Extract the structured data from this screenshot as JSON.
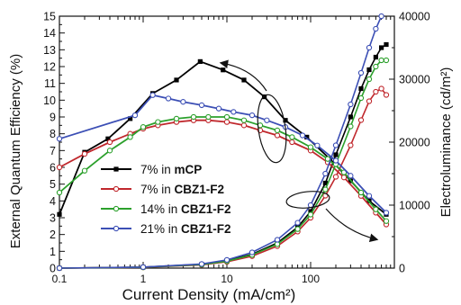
{
  "chart_data": {
    "type": "line",
    "xlabel": "Current Density (mA/cm²)",
    "ylabel_left": "External Quantum Efficiency (%)",
    "ylabel_right": "Electroluminance (cd/m²)",
    "x_scale": "log",
    "xlim": [
      0.1,
      1000
    ],
    "x_ticks": [
      0.1,
      1,
      10,
      100
    ],
    "x_tick_labels": [
      "0.1",
      "1",
      "10",
      "100"
    ],
    "ylim_left": [
      0,
      15
    ],
    "y_ticks_left": [
      0,
      1,
      2,
      3,
      4,
      5,
      6,
      7,
      8,
      9,
      10,
      11,
      12,
      13,
      14,
      15
    ],
    "ylim_right": [
      0,
      40000
    ],
    "y_ticks_right": [
      0,
      10000,
      20000,
      30000,
      40000
    ],
    "grid": false,
    "legend_position": "lower-left",
    "series": [
      {
        "name": "7% in mCP",
        "label_prefix": "7% in ",
        "label_bold": "mCP",
        "color": "#000000",
        "marker": "square-filled",
        "eqe": {
          "x": [
            0.1,
            0.2,
            0.38,
            0.7,
            1.3,
            2.5,
            4.8,
            9,
            16,
            28,
            50,
            90,
            170,
            300,
            500,
            800
          ],
          "y": [
            3.2,
            6.9,
            7.7,
            8.9,
            10.4,
            11.2,
            12.3,
            11.8,
            11.2,
            10.2,
            8.8,
            7.8,
            6.5,
            5.2,
            4.0,
            3.2
          ]
        },
        "luminance": {
          "x": [
            0.1,
            1,
            5,
            10,
            20,
            40,
            70,
            100,
            150,
            200,
            300,
            400,
            500,
            600,
            700,
            800
          ],
          "y": [
            0,
            150,
            600,
            1200,
            2200,
            4000,
            6500,
            9000,
            13500,
            18000,
            24000,
            28500,
            31500,
            33500,
            35000,
            35500
          ]
        }
      },
      {
        "name": "7% in CBZ1-F2",
        "label_prefix": "7% in ",
        "label_bold": "CBZ1-F2",
        "color": "#c0282d",
        "marker": "circle-open",
        "eqe": {
          "x": [
            0.1,
            0.2,
            0.4,
            0.7,
            1,
            1.5,
            2.5,
            4,
            6,
            10,
            16,
            25,
            40,
            60,
            100,
            160,
            250,
            400,
            600,
            800
          ],
          "y": [
            6.0,
            6.8,
            7.5,
            8.0,
            8.3,
            8.5,
            8.7,
            8.8,
            8.8,
            8.7,
            8.5,
            8.2,
            7.9,
            7.5,
            7.0,
            6.3,
            5.4,
            4.3,
            3.3,
            2.6
          ]
        },
        "luminance": {
          "x": [
            0.1,
            1,
            5,
            10,
            20,
            40,
            70,
            100,
            150,
            200,
            300,
            400,
            500,
            600,
            700,
            800
          ],
          "y": [
            0,
            120,
            500,
            1000,
            1900,
            3500,
            5800,
            8000,
            11500,
            14500,
            19500,
            23500,
            26500,
            28000,
            28500,
            27500
          ]
        }
      },
      {
        "name": "14% in CBZ1-F2",
        "label_prefix": "14% in ",
        "label_bold": "CBZ1-F2",
        "color": "#2ca02c",
        "marker": "circle-open",
        "eqe": {
          "x": [
            0.1,
            0.2,
            0.4,
            0.7,
            1,
            1.5,
            2.5,
            4,
            6,
            10,
            16,
            25,
            40,
            60,
            100,
            160,
            250,
            400,
            600,
            800
          ],
          "y": [
            4.5,
            5.8,
            7.0,
            7.8,
            8.4,
            8.7,
            8.9,
            9.0,
            9.0,
            9.0,
            8.8,
            8.5,
            8.2,
            7.8,
            7.2,
            6.5,
            5.7,
            4.5,
            3.5,
            2.8
          ]
        },
        "luminance": {
          "x": [
            0.1,
            1,
            5,
            10,
            20,
            40,
            70,
            100,
            150,
            200,
            300,
            400,
            500,
            600,
            700,
            800
          ],
          "y": [
            0,
            130,
            550,
            1100,
            2100,
            3800,
            6200,
            8500,
            12500,
            16500,
            22500,
            27000,
            30000,
            32000,
            33000,
            33000
          ]
        }
      },
      {
        "name": "21% in CBZ1-F2",
        "label_prefix": "21% in ",
        "label_bold": "CBZ1-F2",
        "color": "#3c4fb5",
        "marker": "circle-open",
        "eqe": {
          "x": [
            0.1,
            0.8,
            1.3,
            2,
            3,
            5,
            8,
            12,
            20,
            30,
            50,
            80,
            120,
            200,
            300,
            500,
            800
          ],
          "y": [
            7.7,
            9.1,
            10.3,
            10.1,
            9.9,
            9.7,
            9.5,
            9.3,
            9.1,
            8.8,
            8.4,
            7.9,
            7.3,
            6.4,
            5.5,
            4.3,
            3.3
          ]
        },
        "luminance": {
          "x": [
            0.1,
            1,
            5,
            10,
            20,
            40,
            70,
            100,
            150,
            200,
            300,
            400,
            500,
            600,
            700
          ],
          "y": [
            0,
            160,
            650,
            1300,
            2500,
            4500,
            7200,
            10000,
            15000,
            19500,
            26000,
            31000,
            35000,
            38000,
            40000
          ]
        }
      }
    ]
  }
}
